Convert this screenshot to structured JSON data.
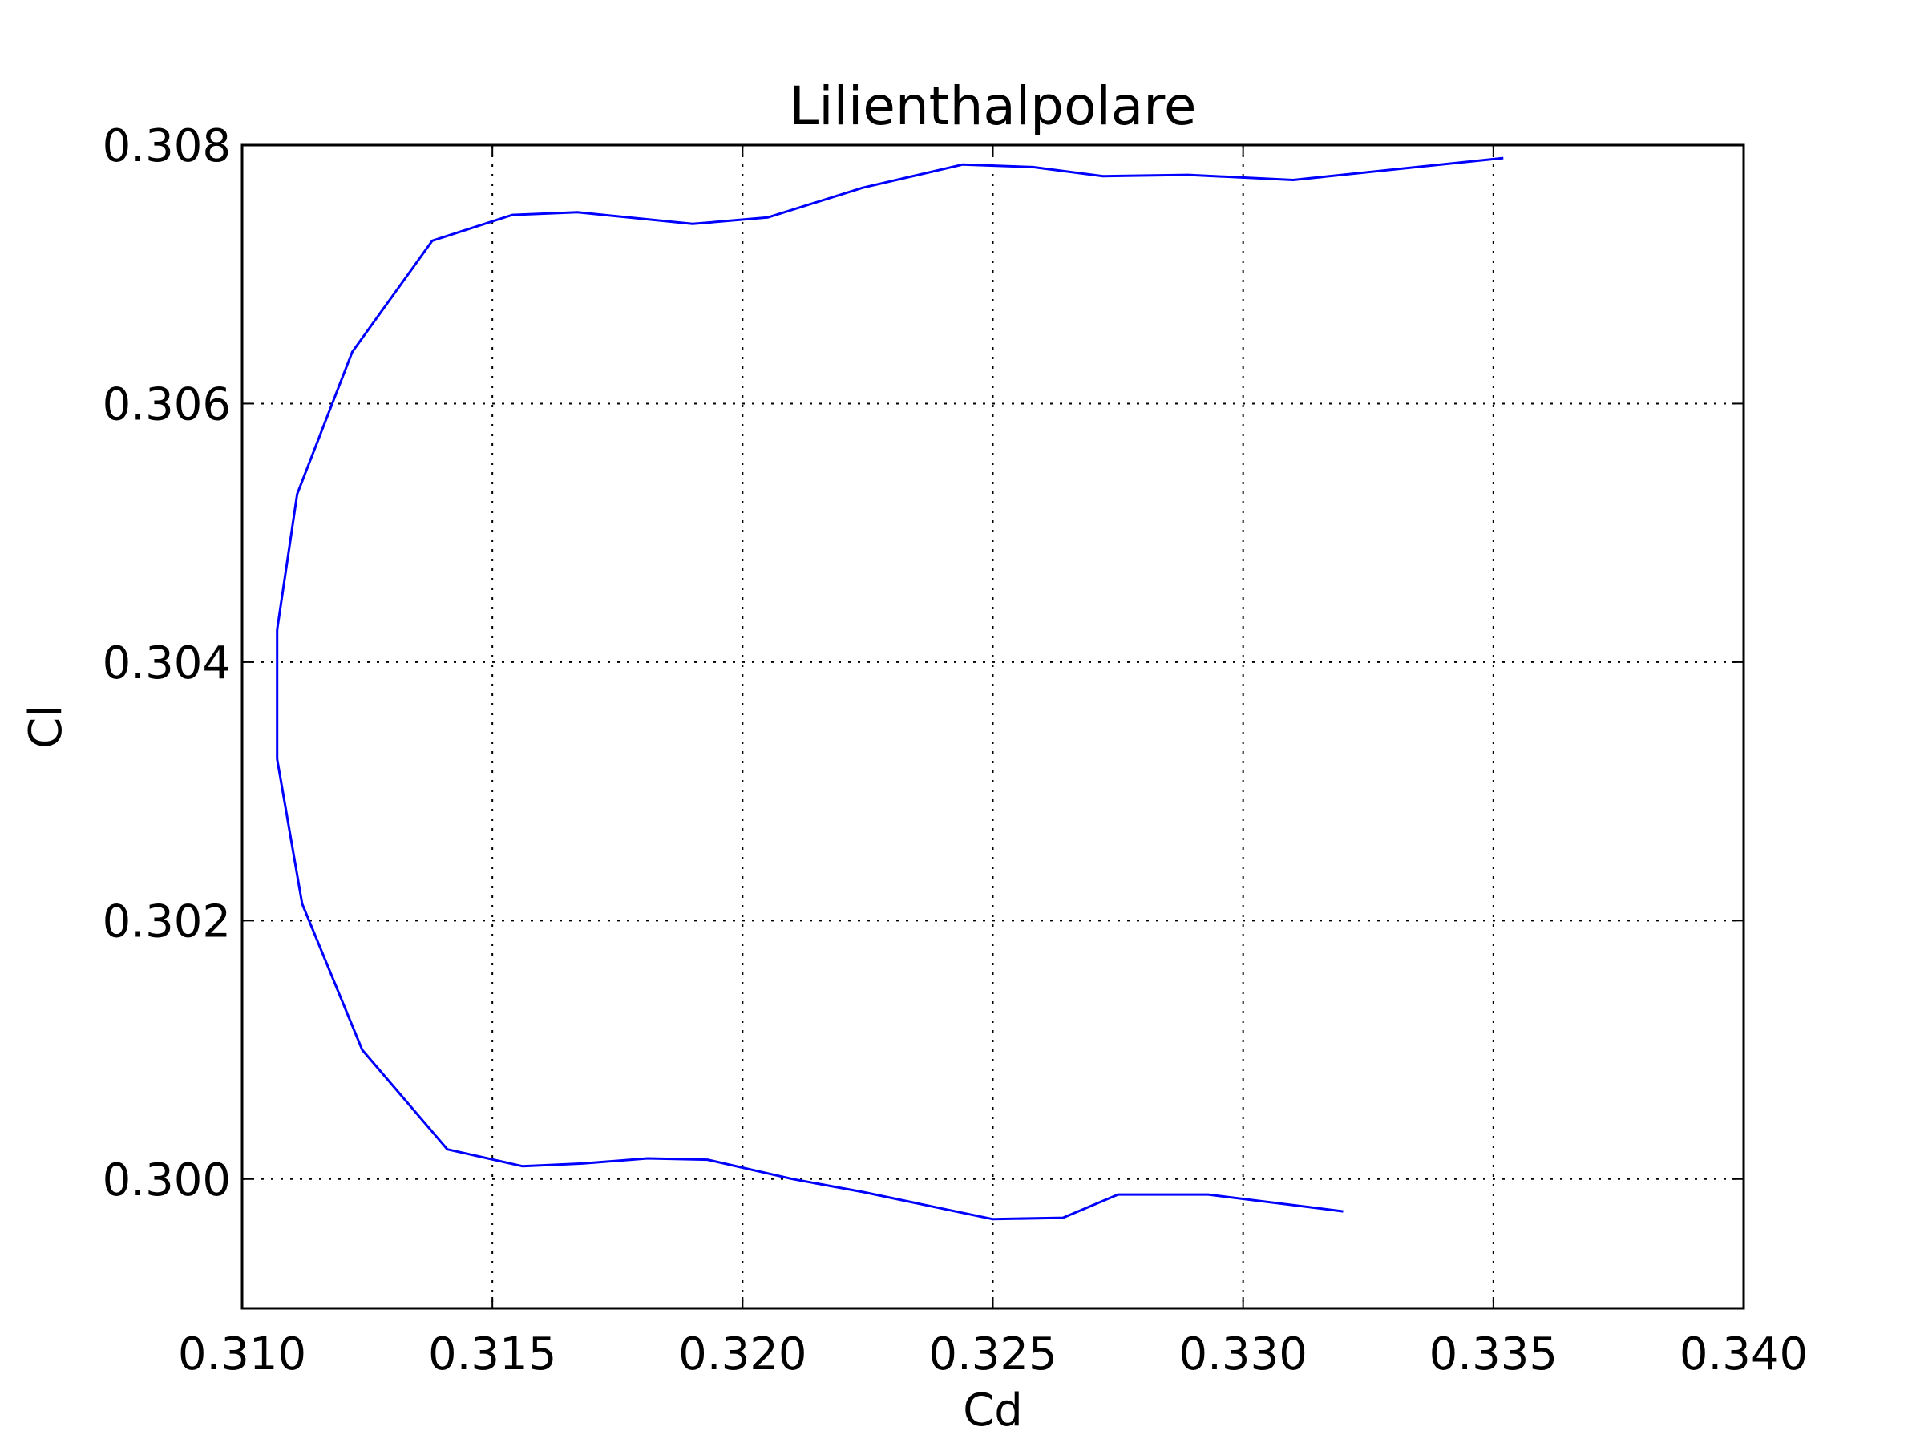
{
  "chart_data": {
    "type": "line",
    "title": "Lilienthalpolare",
    "xlabel": "Cd",
    "ylabel": "Cl",
    "xlim": [
      0.31,
      0.34
    ],
    "ylim": [
      0.299,
      0.308
    ],
    "xticks": [
      0.31,
      0.315,
      0.32,
      0.325,
      0.33,
      0.335,
      0.34
    ],
    "xtick_labels": [
      "0.310",
      "0.315",
      "0.320",
      "0.325",
      "0.330",
      "0.335",
      "0.340"
    ],
    "yticks": [
      0.3,
      0.302,
      0.304,
      0.306,
      0.308
    ],
    "ytick_labels": [
      "0.300",
      "0.302",
      "0.304",
      "0.306",
      "0.308"
    ],
    "grid": true,
    "line_color": "#0000ff",
    "series": [
      {
        "x": [
          0.332,
          0.3293,
          0.3275,
          0.3264,
          0.325,
          0.3224,
          0.321,
          0.3193,
          0.3181,
          0.3168,
          0.3156,
          0.3141,
          0.3124,
          0.3112,
          0.3107,
          0.3107,
          0.3111,
          0.3122,
          0.3138,
          0.3154,
          0.3167,
          0.319,
          0.3205,
          0.3224,
          0.3244,
          0.3258,
          0.3272,
          0.3289,
          0.331,
          0.3352
        ],
        "y": [
          0.29975,
          0.29988,
          0.29988,
          0.2997,
          0.29969,
          0.2999,
          0.3,
          0.30015,
          0.30016,
          0.30012,
          0.3001,
          0.30023,
          0.301,
          0.30213,
          0.30325,
          0.30425,
          0.3053,
          0.3064,
          0.30726,
          0.30746,
          0.30748,
          0.30739,
          0.30744,
          0.30767,
          0.30785,
          0.30783,
          0.30776,
          0.30777,
          0.30773,
          0.3079
        ]
      }
    ]
  }
}
